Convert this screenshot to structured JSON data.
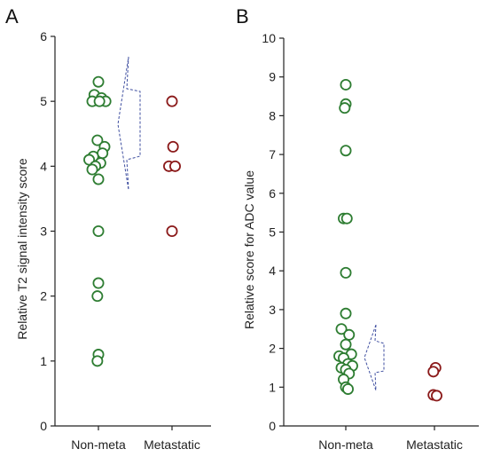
{
  "chart_data": [
    {
      "panel": "A",
      "type": "scatter",
      "ylabel": "Relative T2 signal intensity score",
      "categories": [
        "Non-meta",
        "Metastatic"
      ],
      "ylim": [
        0,
        6
      ],
      "yticks": [
        0,
        1,
        2,
        3,
        4,
        5,
        6
      ],
      "series": [
        {
          "category": "Non-meta",
          "color": "#2e7d32",
          "points": [
            {
              "dx": 0.0,
              "y": 5.3
            },
            {
              "dx": -0.08,
              "y": 5.1
            },
            {
              "dx": 0.06,
              "y": 5.05
            },
            {
              "dx": -0.12,
              "y": 5.0
            },
            {
              "dx": 0.14,
              "y": 5.0
            },
            {
              "dx": 0.02,
              "y": 5.0
            },
            {
              "dx": -0.02,
              "y": 4.4
            },
            {
              "dx": 0.12,
              "y": 4.3
            },
            {
              "dx": 0.08,
              "y": 4.2
            },
            {
              "dx": -0.1,
              "y": 4.15
            },
            {
              "dx": -0.18,
              "y": 4.1
            },
            {
              "dx": 0.04,
              "y": 4.05
            },
            {
              "dx": -0.06,
              "y": 4.0
            },
            {
              "dx": -0.12,
              "y": 3.95
            },
            {
              "dx": 0.0,
              "y": 3.8
            },
            {
              "dx": 0.0,
              "y": 3.0
            },
            {
              "dx": 0.0,
              "y": 2.2
            },
            {
              "dx": -0.02,
              "y": 2.0
            },
            {
              "dx": 0.0,
              "y": 1.1
            },
            {
              "dx": -0.02,
              "y": 1.0
            }
          ]
        },
        {
          "category": "Metastatic",
          "color": "#8b1a1a",
          "points": [
            {
              "dx": 0.0,
              "y": 5.0
            },
            {
              "dx": 0.02,
              "y": 4.3
            },
            {
              "dx": -0.06,
              "y": 4.0
            },
            {
              "dx": 0.06,
              "y": 4.0
            },
            {
              "dx": 0.0,
              "y": 3.0
            }
          ]
        }
      ]
    },
    {
      "panel": "B",
      "type": "scatter",
      "ylabel": "Relative score for ADC value",
      "categories": [
        "Non-meta",
        "Metastatic"
      ],
      "ylim": [
        0,
        10
      ],
      "yticks": [
        0,
        1,
        2,
        3,
        4,
        5,
        6,
        7,
        8,
        9,
        10
      ],
      "series": [
        {
          "category": "Non-meta",
          "color": "#2e7d32",
          "points": [
            {
              "dx": 0.0,
              "y": 8.8
            },
            {
              "dx": 0.0,
              "y": 8.3
            },
            {
              "dx": -0.02,
              "y": 8.2
            },
            {
              "dx": 0.0,
              "y": 7.1
            },
            {
              "dx": -0.04,
              "y": 5.35
            },
            {
              "dx": 0.02,
              "y": 5.35
            },
            {
              "dx": 0.0,
              "y": 3.95
            },
            {
              "dx": 0.0,
              "y": 2.9
            },
            {
              "dx": -0.08,
              "y": 2.5
            },
            {
              "dx": 0.06,
              "y": 2.35
            },
            {
              "dx": 0.0,
              "y": 2.1
            },
            {
              "dx": 0.1,
              "y": 1.85
            },
            {
              "dx": -0.12,
              "y": 1.8
            },
            {
              "dx": -0.04,
              "y": 1.75
            },
            {
              "dx": 0.04,
              "y": 1.6
            },
            {
              "dx": 0.12,
              "y": 1.55
            },
            {
              "dx": -0.08,
              "y": 1.5
            },
            {
              "dx": 0.0,
              "y": 1.45
            },
            {
              "dx": 0.06,
              "y": 1.35
            },
            {
              "dx": -0.04,
              "y": 1.2
            },
            {
              "dx": 0.0,
              "y": 1.0
            },
            {
              "dx": 0.04,
              "y": 0.95
            }
          ]
        },
        {
          "category": "Metastatic",
          "color": "#8b1a1a",
          "points": [
            {
              "dx": 0.02,
              "y": 1.5
            },
            {
              "dx": -0.02,
              "y": 1.4
            },
            {
              "dx": -0.02,
              "y": 0.8
            },
            {
              "dx": 0.04,
              "y": 0.78
            }
          ]
        }
      ]
    }
  ]
}
